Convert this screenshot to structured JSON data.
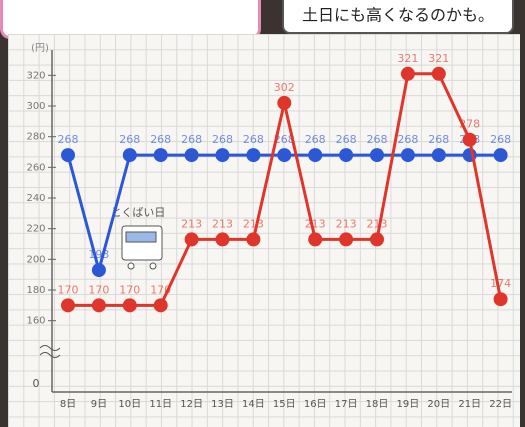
{
  "chart_data": {
    "type": "line",
    "annotation": "土日にも高くなるのかも。",
    "sale_label": "とくばい日",
    "y_unit": "(円)",
    "y_origin": 0,
    "categories": [
      "8日",
      "9日",
      "10日",
      "11日",
      "12日",
      "13日",
      "14日",
      "15日",
      "16日",
      "17日",
      "18日",
      "19日",
      "20日",
      "21日",
      "22日"
    ],
    "series": [
      {
        "color": "#2c58d6",
        "values": [
          268,
          193,
          268,
          268,
          268,
          268,
          268,
          268,
          268,
          268,
          268,
          268,
          268,
          268,
          268
        ]
      },
      {
        "color": "#e0352a",
        "values": [
          170,
          170,
          170,
          170,
          213,
          213,
          213,
          302,
          213,
          213,
          213,
          321,
          321,
          278,
          174
        ]
      }
    ],
    "ylim": [
      150,
      330
    ],
    "yticks": [
      160,
      180,
      200,
      220,
      240,
      260,
      280,
      300,
      320
    ],
    "grid": false
  }
}
